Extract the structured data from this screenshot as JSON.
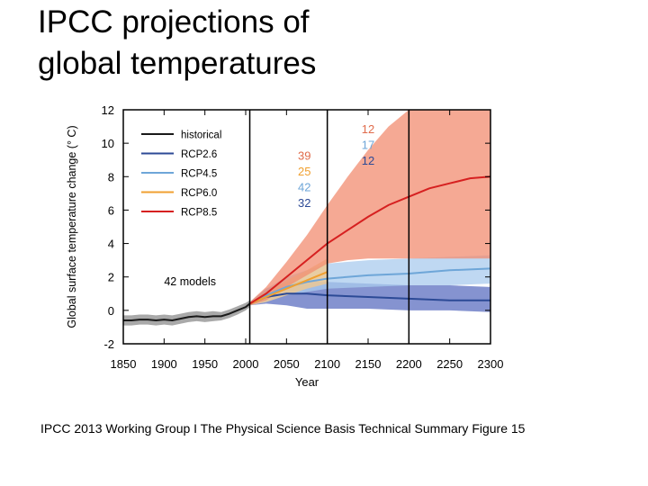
{
  "title": {
    "line1": "IPCC projections of",
    "line2": "global temperatures"
  },
  "caption": "IPCC 2013 Working Group I The Physical Science Basis Technical Summary Figure 15",
  "chart_data": {
    "type": "line",
    "xlabel": "Year",
    "ylabel": "Global surface temperature change (° C)",
    "xlim": [
      1850,
      2300
    ],
    "ylim": [
      -2,
      12
    ],
    "xticks": [
      1850,
      1900,
      1950,
      2000,
      2050,
      2100,
      2150,
      2200,
      2250,
      2300
    ],
    "yticks": [
      -2,
      0,
      2,
      4,
      6,
      8,
      10,
      12
    ],
    "vertical_lines": [
      2005,
      2100,
      2200
    ],
    "legend_position": "top-left",
    "annotation": "42 models",
    "model_counts": [
      {
        "period": "2006-2100",
        "values": [
          {
            "series": "RCP8.5",
            "count": "39",
            "color": "#e06c4c"
          },
          {
            "series": "RCP6.0",
            "count": "25",
            "color": "#f0a030"
          },
          {
            "series": "RCP4.5",
            "count": "42",
            "color": "#6ea6d8"
          },
          {
            "series": "RCP2.6",
            "count": "32",
            "color": "#2c4a96"
          }
        ]
      },
      {
        "period": "2100-2300",
        "values": [
          {
            "series": "RCP8.5",
            "count": "12",
            "color": "#e06c4c"
          },
          {
            "series": "RCP4.5",
            "count": "17",
            "color": "#6ea6d8"
          },
          {
            "series": "RCP2.6",
            "count": "12",
            "color": "#2c4a96"
          }
        ]
      }
    ],
    "series": [
      {
        "name": "historical",
        "color": "#1a1a1a",
        "band": "#8c8c8c",
        "x": [
          1850,
          1860,
          1870,
          1880,
          1890,
          1900,
          1910,
          1920,
          1930,
          1940,
          1950,
          1960,
          1970,
          1980,
          1990,
          2000,
          2005
        ],
        "y": [
          -0.6,
          -0.6,
          -0.55,
          -0.55,
          -0.6,
          -0.55,
          -0.6,
          -0.5,
          -0.4,
          -0.35,
          -0.4,
          -0.35,
          -0.35,
          -0.2,
          0.0,
          0.2,
          0.4
        ],
        "lo": [
          -0.9,
          -0.9,
          -0.85,
          -0.85,
          -0.9,
          -0.85,
          -0.9,
          -0.8,
          -0.7,
          -0.65,
          -0.7,
          -0.65,
          -0.6,
          -0.45,
          -0.25,
          0.0,
          0.2
        ],
        "hi": [
          -0.3,
          -0.3,
          -0.25,
          -0.25,
          -0.3,
          -0.25,
          -0.3,
          -0.2,
          -0.1,
          -0.05,
          -0.1,
          -0.05,
          -0.1,
          0.05,
          0.25,
          0.45,
          0.6
        ]
      },
      {
        "name": "RCP2.6",
        "color": "#2c4a96",
        "band": "#5c6fc0",
        "x": [
          2005,
          2025,
          2050,
          2075,
          2100,
          2150,
          2200,
          2250,
          2300
        ],
        "y": [
          0.4,
          0.8,
          1.0,
          1.0,
          0.9,
          0.8,
          0.7,
          0.6,
          0.6
        ],
        "lo": [
          0.3,
          0.4,
          0.3,
          0.1,
          0.1,
          0.1,
          0.0,
          0.0,
          -0.1
        ],
        "hi": [
          0.5,
          1.3,
          1.7,
          1.8,
          1.7,
          1.6,
          1.5,
          1.5,
          1.4
        ]
      },
      {
        "name": "RCP4.5",
        "color": "#6ea6d8",
        "band": "#a9cbee",
        "x": [
          2005,
          2025,
          2050,
          2075,
          2100,
          2150,
          2200,
          2250,
          2300
        ],
        "y": [
          0.4,
          0.9,
          1.4,
          1.7,
          1.9,
          2.1,
          2.2,
          2.4,
          2.5
        ],
        "lo": [
          0.3,
          0.5,
          0.9,
          1.1,
          1.3,
          1.4,
          1.5,
          1.5,
          1.6
        ],
        "hi": [
          0.5,
          1.3,
          2.0,
          2.4,
          2.8,
          3.0,
          3.1,
          3.2,
          3.3
        ]
      },
      {
        "name": "RCP6.0",
        "color": "#f0a030",
        "band": "#f5c98a",
        "x": [
          2005,
          2025,
          2050,
          2075,
          2100
        ],
        "y": [
          0.4,
          0.8,
          1.3,
          1.8,
          2.3
        ],
        "lo": [
          0.3,
          0.5,
          0.9,
          1.3,
          1.6
        ],
        "hi": [
          0.5,
          1.1,
          1.8,
          2.4,
          3.1
        ]
      },
      {
        "name": "RCP8.5",
        "color": "#d62020",
        "band": "#f28c70",
        "x": [
          2005,
          2025,
          2050,
          2075,
          2100,
          2125,
          2150,
          2175,
          2200,
          2225,
          2250,
          2275,
          2300
        ],
        "y": [
          0.4,
          1.0,
          2.0,
          3.0,
          4.0,
          4.8,
          5.6,
          6.3,
          6.8,
          7.3,
          7.6,
          7.9,
          8.0
        ],
        "lo": [
          0.3,
          0.6,
          1.4,
          2.1,
          2.8,
          3.0,
          3.1,
          3.1,
          3.1,
          3.1,
          3.1,
          3.1,
          3.1
        ],
        "hi": [
          0.5,
          1.4,
          2.9,
          4.5,
          6.3,
          8.0,
          9.6,
          11.0,
          12.0,
          12.0,
          12.0,
          12.0,
          12.0
        ]
      }
    ]
  }
}
